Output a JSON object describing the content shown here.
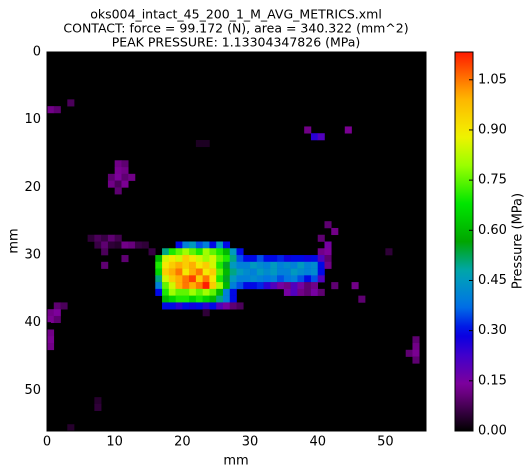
{
  "chart_data": {
    "type": "heatmap",
    "title": [
      "oks004_intact_45_200_1_M_AVG_METRICS.xml",
      "CONTACT: force = 99.172 (N), area = 340.322 (mm^2)",
      "PEAK PRESSURE: 1.13304347826 (MPa)"
    ],
    "x_label": "mm",
    "y_label": "mm",
    "colorbar_label": "Pressure (MPa)",
    "xlim": [
      0,
      56
    ],
    "ylim": [
      56,
      0
    ],
    "xticks": [
      0,
      10,
      20,
      30,
      40,
      50
    ],
    "yticks": [
      0,
      10,
      20,
      30,
      40,
      50
    ],
    "clim": [
      0,
      1.13304347826
    ],
    "cticks": [
      {
        "value": 0,
        "label": "0.00"
      },
      {
        "value": 0.15,
        "label": "0.15"
      },
      {
        "value": 0.3,
        "label": "0.30"
      },
      {
        "value": 0.45,
        "label": "0.45"
      },
      {
        "value": 0.6,
        "label": "0.60"
      },
      {
        "value": 0.75,
        "label": "0.75"
      },
      {
        "value": 0.9,
        "label": "0.90"
      },
      {
        "value": 1.05,
        "label": "1.05"
      }
    ],
    "rows": [
      {
        "y": 7,
        "x0": 3,
        "values": [
          0.08
        ]
      },
      {
        "y": 8,
        "x0": 0,
        "values": [
          0.12,
          0.1
        ]
      },
      {
        "y": 11,
        "x0": 38,
        "values": [
          0.12
        ]
      },
      {
        "y": 11,
        "x0": 44,
        "values": [
          0.13
        ]
      },
      {
        "y": 12,
        "x0": 39,
        "values": [
          0.25,
          0.2
        ]
      },
      {
        "y": 13,
        "x0": 22,
        "values": [
          0.03,
          0.03
        ]
      },
      {
        "y": 16,
        "x0": 10,
        "values": [
          0.12,
          0.1
        ]
      },
      {
        "y": 17,
        "x0": 10,
        "values": [
          0.13,
          0.12
        ]
      },
      {
        "y": 18,
        "x0": 9,
        "values": [
          0.1,
          0.14,
          0.1,
          0.12
        ]
      },
      {
        "y": 19,
        "x0": 9,
        "values": [
          0.12,
          0.08,
          0.13
        ]
      },
      {
        "y": 20,
        "x0": 10,
        "values": [
          0.1
        ]
      },
      {
        "y": 25,
        "x0": 41,
        "values": [
          0.1
        ]
      },
      {
        "y": 26,
        "x0": 42,
        "values": [
          0.12
        ]
      },
      {
        "y": 27,
        "x0": 6,
        "values": [
          0.05,
          0.08,
          0.06,
          0.1,
          0.07
        ]
      },
      {
        "y": 27,
        "x0": 40,
        "values": [
          0.1
        ]
      },
      {
        "y": 28,
        "x0": 7,
        "values": [
          0.06,
          0.1,
          0.05,
          0.04,
          0.12,
          0.11,
          0.06,
          0.05
        ]
      },
      {
        "y": 28,
        "x0": 19,
        "values": [
          0.3,
          0.4,
          0.45,
          0.35,
          0.4,
          0.3,
          0.45,
          0.3
        ]
      },
      {
        "y": 28,
        "x0": 41,
        "values": [
          0.15
        ]
      },
      {
        "y": 29,
        "x0": 8,
        "values": [
          0.08
        ]
      },
      {
        "y": 29,
        "x0": 15,
        "values": [
          0.06
        ]
      },
      {
        "y": 29,
        "x0": 17,
        "values": [
          0.5,
          0.7,
          0.75,
          0.8,
          0.75,
          0.7,
          0.8,
          0.75,
          0.7,
          0.6,
          0.45,
          0.3
        ]
      },
      {
        "y": 29,
        "x0": 40,
        "values": [
          0.12,
          0.14
        ]
      },
      {
        "y": 29,
        "x0": 50,
        "values": [
          0.05
        ]
      },
      {
        "y": 30,
        "x0": 11,
        "values": [
          0.1
        ]
      },
      {
        "y": 30,
        "x0": 16,
        "values": [
          0.6,
          0.85,
          0.9,
          0.85,
          0.95,
          0.9,
          0.85,
          0.8,
          0.85,
          0.75,
          0.7,
          0.5,
          0.35,
          0.3,
          0.3,
          0.35,
          0.3,
          0.3,
          0.32,
          0.28,
          0.3,
          0.3,
          0.28,
          0.3,
          0.2,
          0.1
        ]
      },
      {
        "y": 31,
        "x0": 8,
        "values": [
          0.1
        ]
      },
      {
        "y": 31,
        "x0": 16,
        "values": [
          0.7,
          0.9,
          0.95,
          1.0,
          0.95,
          1.0,
          0.9,
          0.95,
          0.85,
          0.7,
          0.55,
          0.45,
          0.4,
          0.4,
          0.45,
          0.42,
          0.4,
          0.45,
          0.4,
          0.42,
          0.4,
          0.45,
          0.4,
          0.42,
          0.3,
          0.12
        ]
      },
      {
        "y": 32,
        "x0": 16,
        "values": [
          0.65,
          0.95,
          1.0,
          1.05,
          0.9,
          1.0,
          1.05,
          0.9,
          0.95,
          0.75,
          0.6,
          0.5,
          0.45,
          0.42,
          0.4,
          0.45,
          0.42,
          0.45,
          0.4,
          0.4,
          0.45,
          0.42,
          0.4,
          0.42,
          0.3
        ]
      },
      {
        "y": 33,
        "x0": 16,
        "values": [
          0.5,
          0.85,
          0.95,
          1.0,
          1.05,
          1.1,
          0.95,
          1.05,
          0.9,
          0.7,
          0.55,
          0.45,
          0.4,
          0.4,
          0.42,
          0.4,
          0.38,
          0.4,
          0.35,
          0.38,
          0.4,
          0.35,
          0.3,
          0.35,
          0.2
        ]
      },
      {
        "y": 34,
        "x0": 16,
        "values": [
          0.4,
          0.75,
          0.85,
          1.0,
          1.05,
          1.0,
          1.05,
          1.13,
          0.95,
          0.8,
          0.6,
          0.4,
          0.35,
          0.3,
          0.3,
          0.32,
          0.25,
          0.2,
          0.15,
          0.12,
          0.2,
          0.15,
          0.1,
          0.12
        ]
      },
      {
        "y": 34,
        "x0": 42,
        "values": [
          0.1
        ]
      },
      {
        "y": 34,
        "x0": 45,
        "values": [
          0.12
        ]
      },
      {
        "y": 35,
        "x0": 16,
        "values": [
          0.3,
          0.7,
          0.8,
          0.75,
          0.75,
          0.8,
          0.75,
          0.8,
          0.75,
          0.6,
          0.4,
          0.3
        ]
      },
      {
        "y": 35,
        "x0": 35,
        "values": [
          0.15,
          0.2,
          0.12,
          0.1,
          0.15,
          0.1
        ]
      },
      {
        "y": 36,
        "x0": 17,
        "values": [
          0.6,
          0.65,
          0.7,
          0.7,
          0.65,
          0.7,
          0.65,
          0.6,
          0.5,
          0.4,
          0.3
        ]
      },
      {
        "y": 36,
        "x0": 46,
        "values": [
          0.1
        ]
      },
      {
        "y": 37,
        "x0": 1,
        "values": [
          0.1,
          0.08
        ]
      },
      {
        "y": 37,
        "x0": 17,
        "values": [
          0.3,
          0.3,
          0.25,
          0.3,
          0.28,
          0.3,
          0.25,
          0.3,
          0.2,
          0.15,
          0.1,
          0.08
        ]
      },
      {
        "y": 38,
        "x0": 0,
        "values": [
          0.12,
          0.14
        ]
      },
      {
        "y": 38,
        "x0": 23,
        "values": [
          0.05
        ]
      },
      {
        "y": 39,
        "x0": 0,
        "values": [
          0.13,
          0.1
        ]
      },
      {
        "y": 41,
        "x0": 0,
        "values": [
          0.12
        ]
      },
      {
        "y": 42,
        "x0": 0,
        "values": [
          0.13
        ]
      },
      {
        "y": 42,
        "x0": 54,
        "values": [
          0.1
        ]
      },
      {
        "y": 43,
        "x0": 0,
        "values": [
          0.12
        ]
      },
      {
        "y": 43,
        "x0": 54,
        "values": [
          0.12
        ]
      },
      {
        "y": 44,
        "x0": 53,
        "values": [
          0.1,
          0.13
        ]
      },
      {
        "y": 45,
        "x0": 54,
        "values": [
          0.1
        ]
      },
      {
        "y": 51,
        "x0": 7,
        "values": [
          0.04
        ]
      },
      {
        "y": 52,
        "x0": 7,
        "values": [
          0.05
        ]
      },
      {
        "y": 55,
        "x0": 3,
        "values": [
          0.04
        ]
      }
    ]
  }
}
